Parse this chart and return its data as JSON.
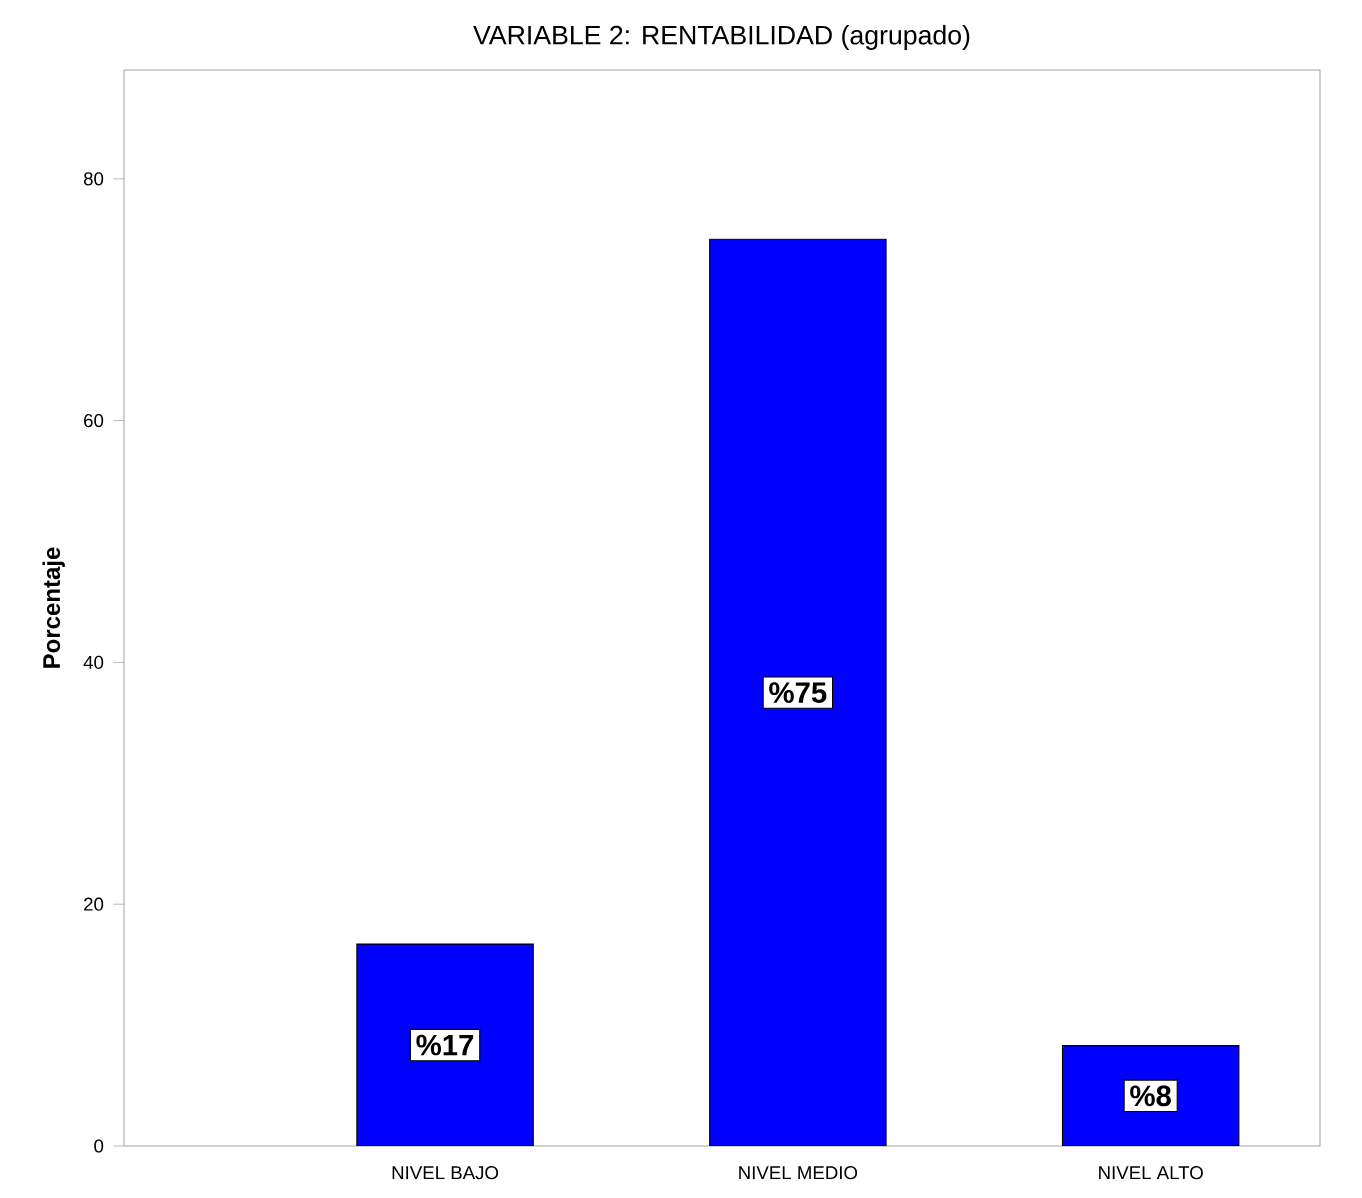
{
  "chart_data": {
    "type": "bar",
    "title": "VARIABLE 2: RENTABILIDAD (agrupado)",
    "ylabel": "Porcentaje",
    "categories": [
      "NIVEL BAJO",
      "NIVEL MEDIO",
      "NIVEL ALTO"
    ],
    "values": [
      16.7,
      75.0,
      8.3
    ],
    "value_labels": [
      "%17",
      "%75",
      "%8"
    ],
    "color": "#0000ff",
    "ylim": [
      0,
      89
    ],
    "yticks": [
      0,
      20,
      40,
      60,
      80
    ],
    "grid": false
  }
}
